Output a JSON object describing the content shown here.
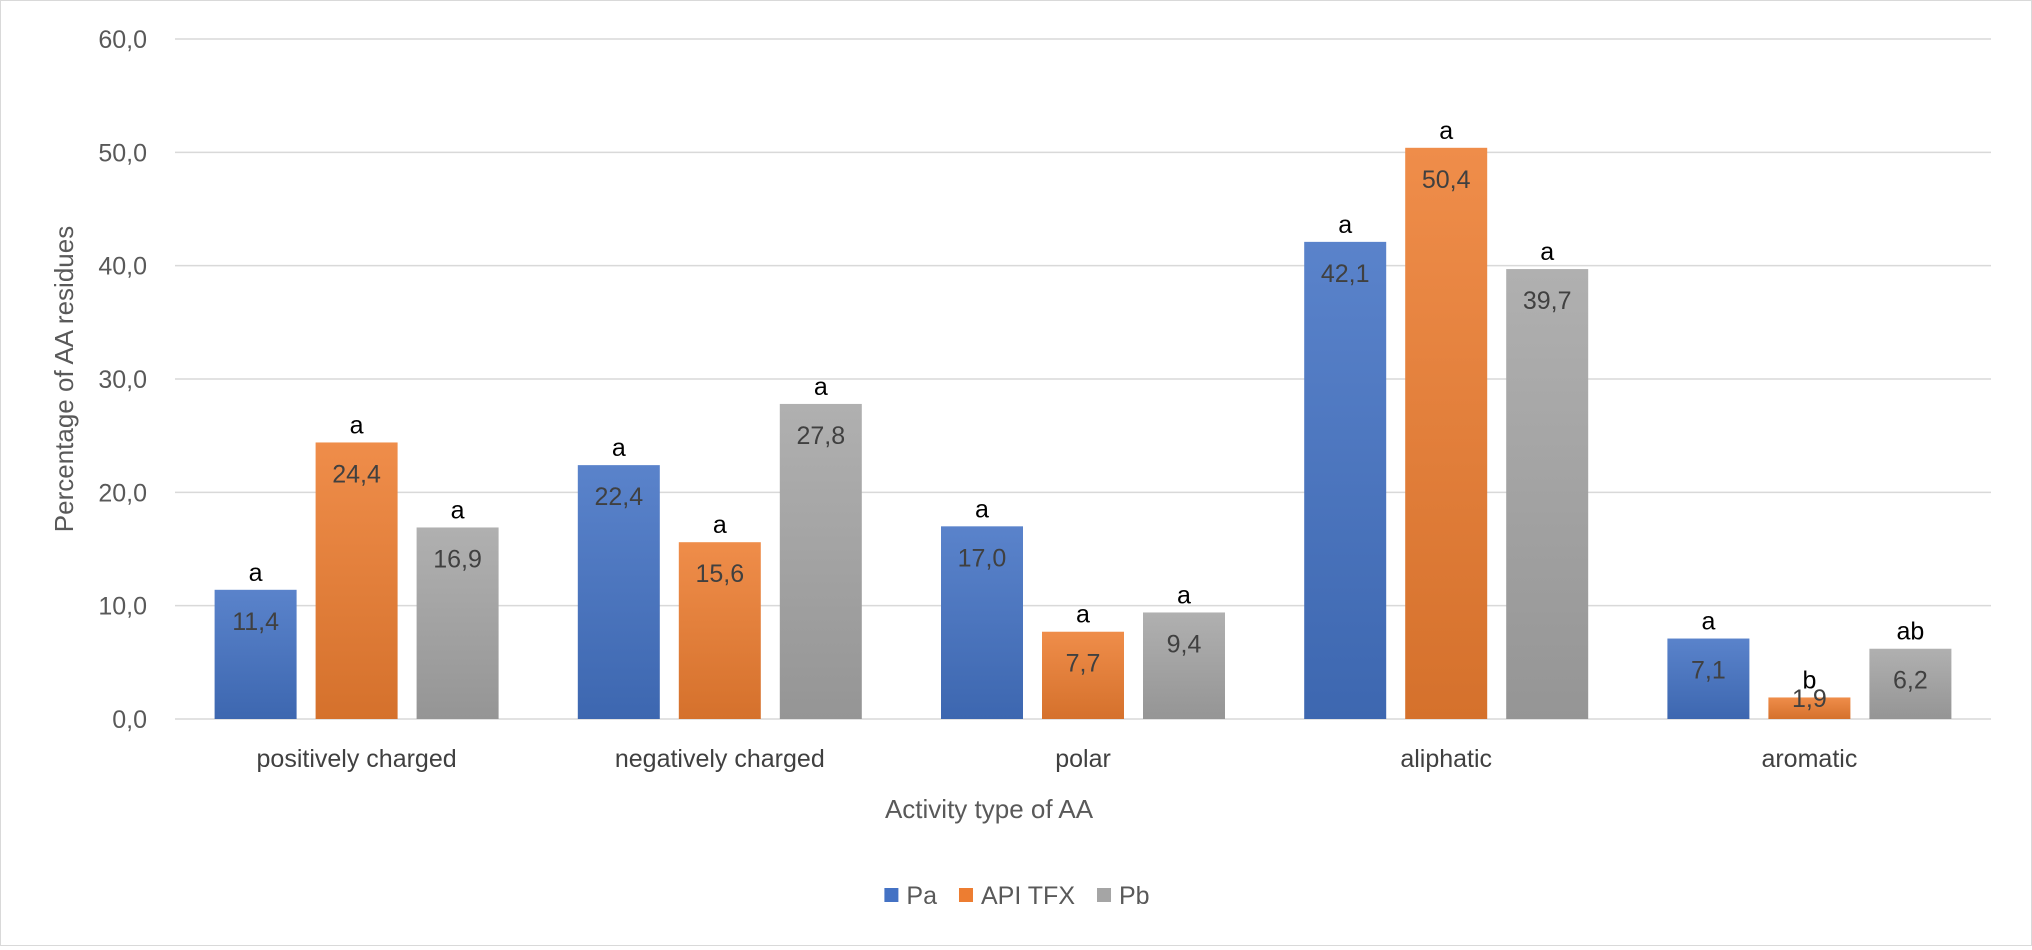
{
  "chart_data": {
    "type": "bar",
    "xlabel": "Activity type of AA",
    "ylabel": "Percentage of AA residues",
    "ylim": [
      0,
      60
    ],
    "yticks": [
      "0,0",
      "10,0",
      "20,0",
      "30,0",
      "40,0",
      "50,0",
      "60,0"
    ],
    "grid": true,
    "legend_position": "bottom",
    "categories": [
      "positively charged",
      "negatively charged",
      "polar",
      "aliphatic",
      "aromatic"
    ],
    "series": [
      {
        "name": "Pa",
        "color": "#4472c4",
        "values": [
          11.4,
          22.4,
          17.0,
          42.1,
          7.1
        ],
        "labels": [
          "11,4",
          "22,4",
          "17,0",
          "42,1",
          "7,1"
        ],
        "significance": [
          "a",
          "a",
          "a",
          "a",
          "a"
        ]
      },
      {
        "name": "API TFX",
        "color": "#ed7d31",
        "values": [
          24.4,
          15.6,
          7.7,
          50.4,
          1.9
        ],
        "labels": [
          "24,4",
          "15,6",
          "7,7",
          "50,4",
          "1,9"
        ],
        "significance": [
          "a",
          "a",
          "a",
          "a",
          "b"
        ]
      },
      {
        "name": "Pb",
        "color": "#a5a5a5",
        "values": [
          16.9,
          27.8,
          9.4,
          39.7,
          6.2
        ],
        "labels": [
          "16,9",
          "27,8",
          "9,4",
          "39,7",
          "6,2"
        ],
        "significance": [
          "a",
          "a",
          "a",
          "a",
          "ab"
        ]
      }
    ]
  }
}
